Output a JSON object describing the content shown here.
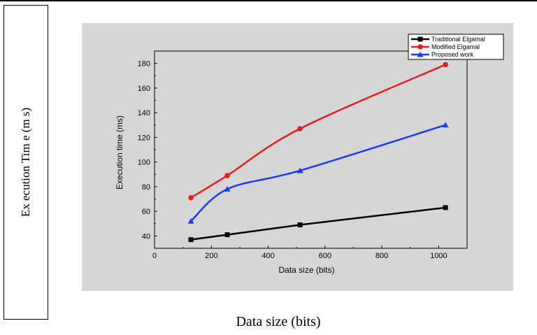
{
  "outer": {
    "ylabel": "Ex ecution Tim e (m s)",
    "xlabel": "Data size (bits)"
  },
  "chart_data": {
    "type": "line",
    "xlabel": "Data size (bits)",
    "ylabel": "Execution time (ms)",
    "xlim": [
      0,
      1100
    ],
    "ylim": [
      30,
      190
    ],
    "xticks": [
      0,
      200,
      400,
      600,
      800,
      1000
    ],
    "yticks": [
      40,
      60,
      80,
      100,
      120,
      140,
      160,
      180
    ],
    "legend_position": "top-right",
    "grid": false,
    "series": [
      {
        "name": "Traditional Elgamal",
        "color": "#000000",
        "marker": "square",
        "x": [
          128,
          256,
          512,
          1024
        ],
        "y": [
          37,
          41,
          49,
          63
        ]
      },
      {
        "name": "Modified Elgamal",
        "color": "#e02020",
        "marker": "circle",
        "x": [
          128,
          256,
          512,
          1024
        ],
        "y": [
          71,
          89,
          127,
          179
        ]
      },
      {
        "name": "Proposed work",
        "color": "#1a3cf0",
        "marker": "triangle",
        "x": [
          128,
          256,
          512,
          1024
        ],
        "y": [
          52,
          78,
          93,
          130
        ]
      }
    ]
  }
}
